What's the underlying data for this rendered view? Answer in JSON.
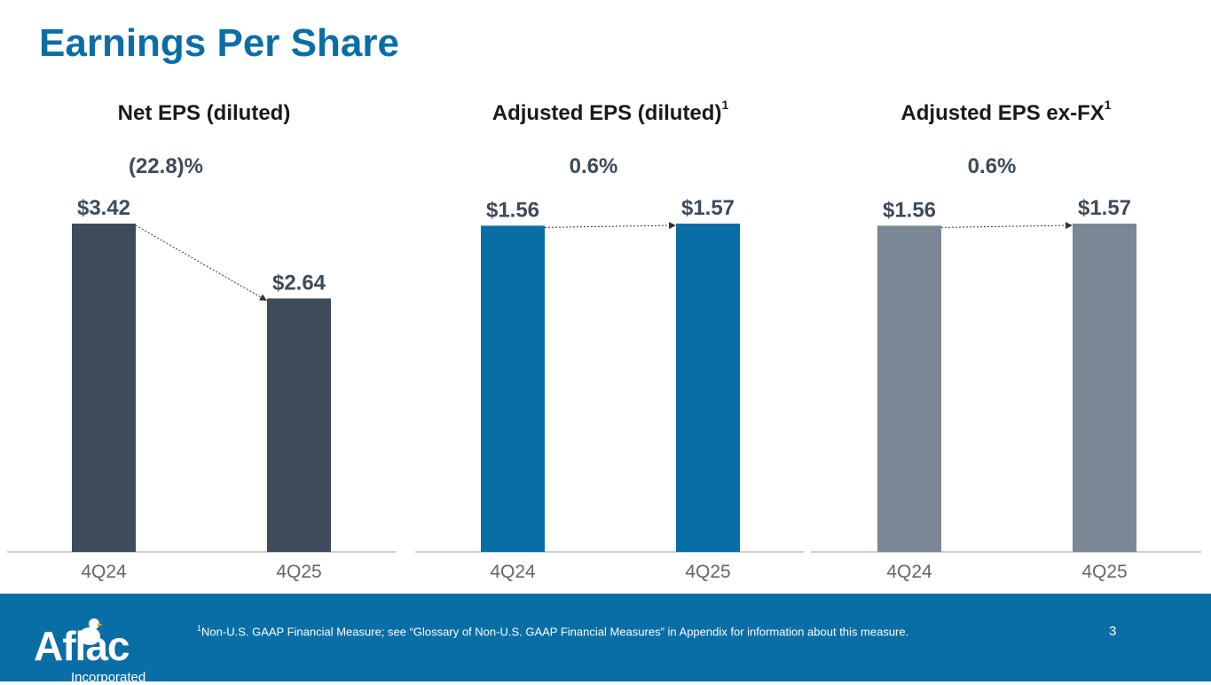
{
  "page": {
    "title": "Earnings Per Share",
    "footnote_mark": "1",
    "footnote": "Non-U.S. GAAP Financial Measure; see “Glossary of Non-U.S. GAAP Financial Measures” in Appendix for information about this measure.",
    "page_number": "3",
    "logo_text": "Aflac",
    "logo_sub": "Incorporated"
  },
  "chart_data": [
    {
      "type": "bar",
      "title": "Net EPS (diluted)",
      "title_sup": "",
      "change_label": "(22.8)%",
      "categories": [
        "4Q24",
        "4Q25"
      ],
      "values": [
        3.42,
        2.64
      ],
      "labels": [
        "$3.42",
        "$2.64"
      ],
      "color": "#3d4b5a",
      "ylim": [
        0,
        3.42
      ]
    },
    {
      "type": "bar",
      "title": "Adjusted EPS (diluted)",
      "title_sup": "1",
      "change_label": "0.6%",
      "categories": [
        "4Q24",
        "4Q25"
      ],
      "values": [
        1.56,
        1.57
      ],
      "labels": [
        "$1.56",
        "$1.57"
      ],
      "color": "#0a6ea6",
      "ylim": [
        0,
        1.57
      ]
    },
    {
      "type": "bar",
      "title": "Adjusted EPS ex-FX",
      "title_sup": "1",
      "change_label": "0.6%",
      "categories": [
        "4Q24",
        "4Q25"
      ],
      "values": [
        1.56,
        1.57
      ],
      "labels": [
        "$1.56",
        "$1.57"
      ],
      "color": "#7a8795",
      "ylim": [
        0,
        1.57
      ]
    }
  ]
}
